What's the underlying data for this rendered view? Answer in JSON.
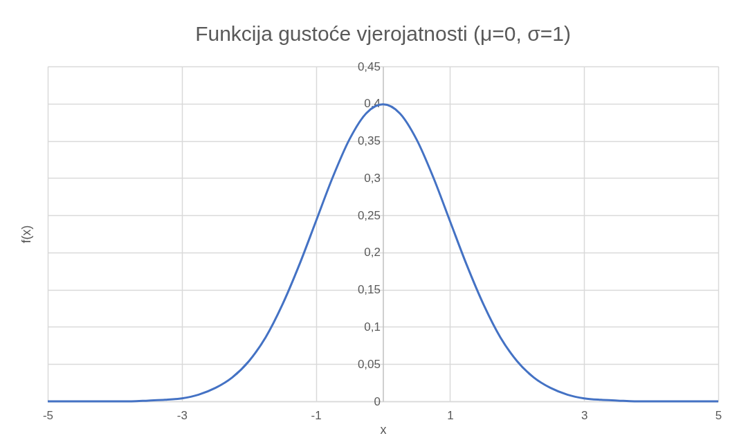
{
  "chart_data": {
    "type": "line",
    "title": "Funkcija gustoće vjerojatnosti (μ=0, σ=1)",
    "xlabel": "x",
    "ylabel": "f(x)",
    "x": [
      -5,
      -4.75,
      -4.5,
      -4.25,
      -4,
      -3.75,
      -3.5,
      -3.25,
      -3,
      -2.75,
      -2.5,
      -2.25,
      -2,
      -1.75,
      -1.5,
      -1.25,
      -1,
      -0.75,
      -0.5,
      -0.25,
      0,
      0.25,
      0.5,
      0.75,
      1,
      1.25,
      1.5,
      1.75,
      2,
      2.25,
      2.5,
      2.75,
      3,
      3.25,
      3.5,
      3.75,
      4,
      4.25,
      4.5,
      4.75,
      5
    ],
    "series": [
      {
        "color": "#4472c4",
        "values": [
          0,
          0,
          0,
          0,
          0,
          0,
          0.001,
          0.002,
          0.004,
          0.009,
          0.018,
          0.032,
          0.054,
          0.086,
          0.13,
          0.183,
          0.242,
          0.301,
          0.352,
          0.387,
          0.399,
          0.387,
          0.352,
          0.301,
          0.242,
          0.183,
          0.13,
          0.086,
          0.054,
          0.032,
          0.018,
          0.009,
          0.004,
          0.002,
          0.001,
          0,
          0,
          0,
          0,
          0,
          0
        ]
      }
    ],
    "xlim": [
      -5,
      5
    ],
    "xticks": [
      -5,
      -3,
      -1,
      1,
      3,
      5
    ],
    "ylim": [
      0,
      0.45
    ],
    "yticks": [
      0,
      {
        "value": 0.05,
        "label": "0,05"
      },
      {
        "value": 0.1,
        "label": "0,1"
      },
      {
        "value": 0.15,
        "label": "0,15"
      },
      {
        "value": 0.2,
        "label": "0,2"
      },
      {
        "value": 0.25,
        "label": "0,25"
      },
      {
        "value": 0.3,
        "label": "0,3"
      },
      {
        "value": 0.35,
        "label": "0,35"
      },
      {
        "value": 0.4,
        "label": "0,4"
      },
      {
        "value": 0.45,
        "label": "0,45"
      }
    ],
    "grid": true,
    "marker": "none",
    "line_style": "solid"
  }
}
